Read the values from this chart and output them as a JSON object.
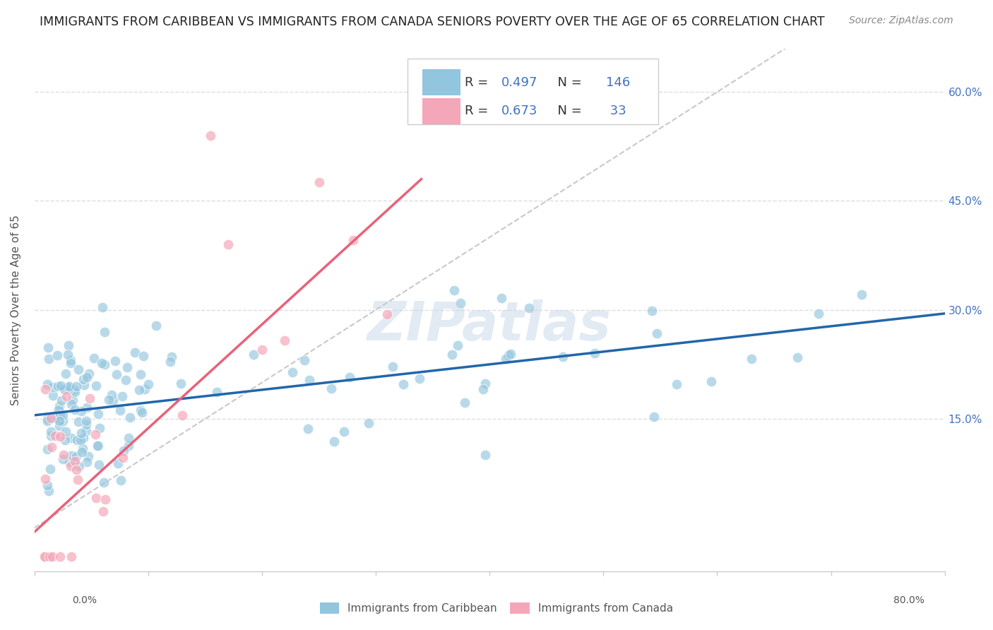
{
  "title": "IMMIGRANTS FROM CARIBBEAN VS IMMIGRANTS FROM CANADA SENIORS POVERTY OVER THE AGE OF 65 CORRELATION CHART",
  "source": "Source: ZipAtlas.com",
  "ylabel": "Seniors Poverty Over the Age of 65",
  "xlim": [
    0.0,
    0.8
  ],
  "ylim": [
    -0.06,
    0.66
  ],
  "blue_R": 0.497,
  "blue_N": 146,
  "pink_R": 0.673,
  "pink_N": 33,
  "blue_color": "#92c5de",
  "pink_color": "#f4a7b9",
  "blue_line_color": "#2166ac",
  "pink_line_color": "#e8627a",
  "diag_line_color": "#bbbbbb",
  "background_color": "#ffffff",
  "grid_color": "#dddddd",
  "title_fontsize": 12.5,
  "source_fontsize": 10,
  "legend_label_blue": "Immigrants from Caribbean",
  "legend_label_pink": "Immigrants from Canada",
  "blue_trend_x": [
    0.0,
    0.8
  ],
  "blue_trend_y": [
    0.155,
    0.295
  ],
  "pink_trend_x": [
    -0.01,
    0.34
  ],
  "pink_trend_y": [
    -0.02,
    0.48
  ],
  "diag_trend_x": [
    0.0,
    0.66
  ],
  "diag_trend_y": [
    0.0,
    0.66
  ],
  "ytick_values": [
    0.15,
    0.3,
    0.45,
    0.6
  ],
  "ytick_labels": [
    "15.0%",
    "30.0%",
    "45.0%",
    "60.0%"
  ],
  "watermark": "ZIPatlas"
}
